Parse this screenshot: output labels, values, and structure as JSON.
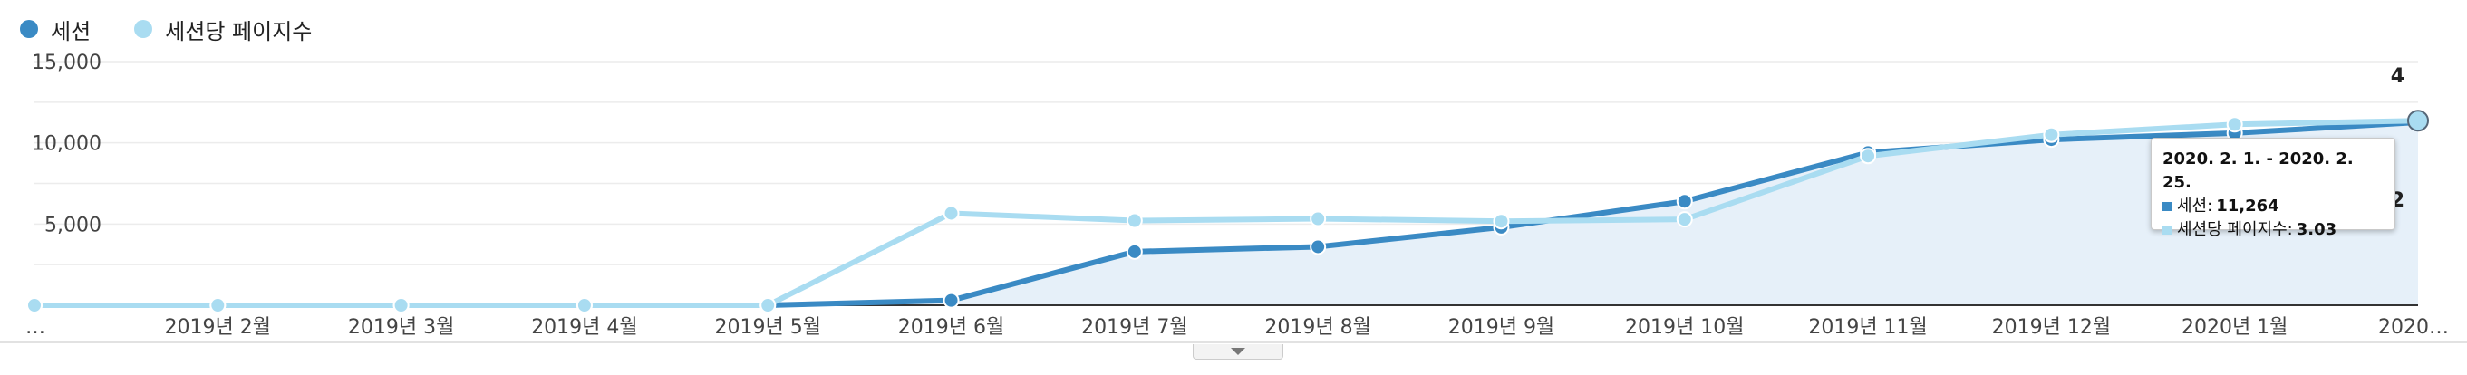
{
  "legend": {
    "items": [
      {
        "label": "세션",
        "color": "#3a8ac4"
      },
      {
        "label": "세션당 페이지수",
        "color": "#a9dcf1"
      }
    ]
  },
  "chart_data": {
    "type": "line",
    "categories": [
      "…",
      "2019년 2월",
      "2019년 3월",
      "2019년 4월",
      "2019년 5월",
      "2019년 6월",
      "2019년 7월",
      "2019년 8월",
      "2019년 9월",
      "2019년 10월",
      "2019년 11월",
      "2019년 12월",
      "2020년 1월",
      "2020…"
    ],
    "series": [
      {
        "name": "세션",
        "color": "#3a8ac4",
        "axis": "left",
        "values": [
          0,
          0,
          0,
          0,
          0,
          300,
          3300,
          3600,
          4800,
          6400,
          9400,
          10200,
          10600,
          11264
        ]
      },
      {
        "name": "세션당 페이지수",
        "color": "#a9dcf1",
        "axis": "right",
        "values": [
          0,
          0,
          0,
          0,
          0,
          1.51,
          1.39,
          1.42,
          1.38,
          1.41,
          2.45,
          2.8,
          2.97,
          3.03
        ]
      }
    ],
    "y_left": {
      "ticks": [
        5000,
        10000,
        15000
      ],
      "tick_labels": [
        "5,000",
        "10,000",
        "15,000"
      ],
      "range": [
        0,
        15000
      ]
    },
    "y_right": {
      "range": [
        0,
        4
      ],
      "annotations": [
        "4",
        "2"
      ]
    },
    "grid": true,
    "legend_position": "top-left"
  },
  "tooltip": {
    "date": "2020. 2. 1. - 2020. 2. 25.",
    "rows": [
      {
        "label": "세션:",
        "value": "11,264",
        "color": "#3a8ac4"
      },
      {
        "label": "세션당 페이지수:",
        "value": "3.03",
        "color": "#a9dcf1"
      }
    ]
  }
}
